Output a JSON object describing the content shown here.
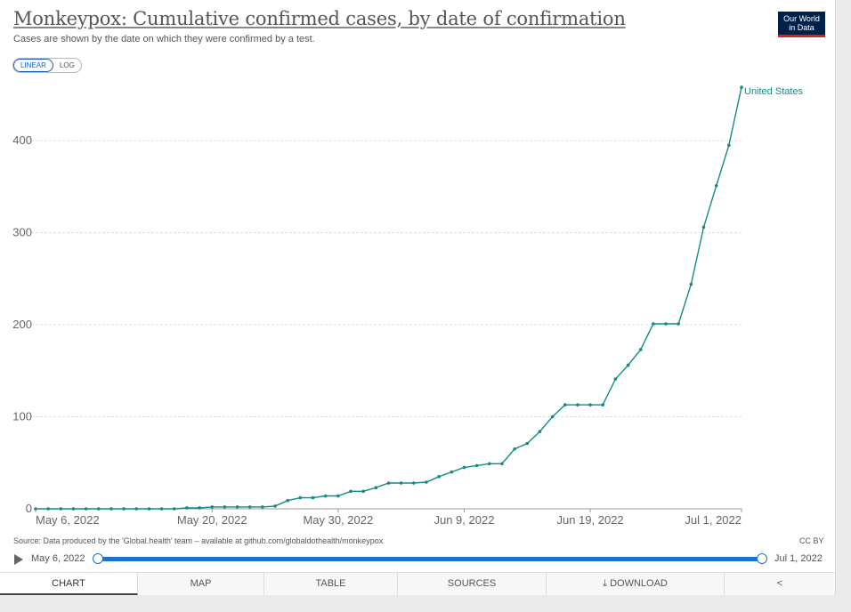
{
  "header": {
    "title": "Monkeypox: Cumulative confirmed cases, by date of confirmation",
    "subtitle": "Cases are shown by the date on which they were confirmed by a test.",
    "logo_line1": "Our World",
    "logo_line2": "in Data"
  },
  "scale_toggle": {
    "linear": "LINEAR",
    "log": "LOG",
    "selected": "LINEAR"
  },
  "colors": {
    "series": "#138a86",
    "accent": "#1a74d4",
    "logo_bg": "#002147",
    "logo_bar": "#ce261e"
  },
  "chart_data": {
    "type": "line",
    "ylim": [
      0,
      460
    ],
    "yticks": [
      0,
      100,
      200,
      300,
      400
    ],
    "xticks": [
      "May 6, 2022",
      "May 20, 2022",
      "May 30, 2022",
      "Jun 9, 2022",
      "Jun 19, 2022",
      "Jul 1, 2022"
    ],
    "grid": true,
    "series": [
      {
        "name": "United States",
        "color": "#138a86",
        "x": [
          "2022-05-06",
          "2022-05-07",
          "2022-05-08",
          "2022-05-09",
          "2022-05-10",
          "2022-05-11",
          "2022-05-12",
          "2022-05-13",
          "2022-05-14",
          "2022-05-15",
          "2022-05-16",
          "2022-05-17",
          "2022-05-18",
          "2022-05-19",
          "2022-05-20",
          "2022-05-21",
          "2022-05-22",
          "2022-05-23",
          "2022-05-24",
          "2022-05-25",
          "2022-05-26",
          "2022-05-27",
          "2022-05-28",
          "2022-05-29",
          "2022-05-30",
          "2022-05-31",
          "2022-06-01",
          "2022-06-02",
          "2022-06-03",
          "2022-06-04",
          "2022-06-05",
          "2022-06-06",
          "2022-06-07",
          "2022-06-08",
          "2022-06-09",
          "2022-06-10",
          "2022-06-11",
          "2022-06-12",
          "2022-06-13",
          "2022-06-14",
          "2022-06-15",
          "2022-06-16",
          "2022-06-17",
          "2022-06-18",
          "2022-06-19",
          "2022-06-20",
          "2022-06-21",
          "2022-06-22",
          "2022-06-23",
          "2022-06-24",
          "2022-06-25",
          "2022-06-26",
          "2022-06-27",
          "2022-06-28",
          "2022-06-29",
          "2022-06-30",
          "2022-07-01"
        ],
        "y": [
          0,
          0,
          0,
          0,
          0,
          0,
          0,
          0,
          0,
          0,
          0,
          0,
          1,
          1,
          2,
          2,
          2,
          2,
          2,
          3,
          9,
          12,
          12,
          14,
          14,
          19,
          19,
          23,
          28,
          28,
          28,
          29,
          35,
          40,
          45,
          47,
          49,
          49,
          65,
          71,
          84,
          100,
          113,
          113,
          113,
          113,
          141,
          156,
          173,
          201,
          201,
          201,
          244,
          306,
          351,
          395,
          458
        ]
      }
    ]
  },
  "footer": {
    "source": "Source: Data produced by the 'Global.health' team – available at github.com/globaldothealth/monkeypox",
    "license": "CC BY"
  },
  "timeline": {
    "start": "May 6, 2022",
    "end": "Jul 1, 2022"
  },
  "tabs": [
    {
      "label": "CHART",
      "active": true
    },
    {
      "label": "MAP"
    },
    {
      "label": "TABLE"
    },
    {
      "label": "SOURCES"
    },
    {
      "label": "DOWNLOAD",
      "icon": "download-icon"
    },
    {
      "label": "",
      "icon": "share-icon"
    }
  ]
}
